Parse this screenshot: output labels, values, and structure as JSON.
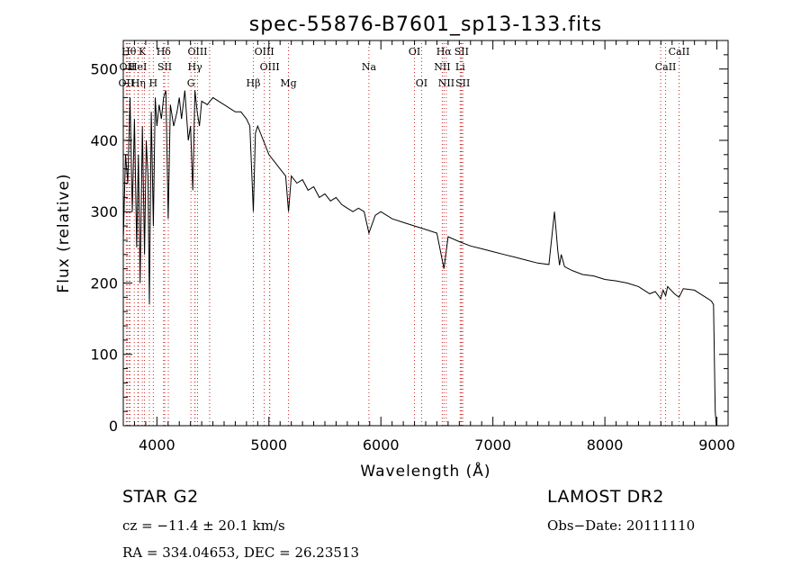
{
  "chart_data": {
    "type": "line",
    "title": "spec-55876-B7601_sp13-133.fits",
    "xlabel": "Wavelength (Å)",
    "ylabel": "Flux (relative)",
    "xlim": [
      3700,
      9100
    ],
    "ylim": [
      0,
      540
    ],
    "xticks": [
      4000,
      5000,
      6000,
      7000,
      8000,
      9000
    ],
    "yticks": [
      0,
      100,
      200,
      300,
      400,
      500
    ],
    "grid": false,
    "line_color": "#000000",
    "marker_color": "#cc2222",
    "spectrum": {
      "x": [
        3700,
        3720,
        3740,
        3760,
        3780,
        3800,
        3820,
        3835,
        3850,
        3870,
        3890,
        3905,
        3920,
        3933,
        3950,
        3968,
        3985,
        4000,
        4020,
        4040,
        4060,
        4080,
        4101,
        4120,
        4150,
        4180,
        4200,
        4220,
        4250,
        4280,
        4300,
        4320,
        4340,
        4360,
        4380,
        4400,
        4450,
        4500,
        4550,
        4600,
        4650,
        4700,
        4750,
        4800,
        4830,
        4861,
        4880,
        4900,
        4950,
        5000,
        5050,
        5100,
        5150,
        5175,
        5200,
        5250,
        5300,
        5350,
        5400,
        5450,
        5500,
        5550,
        5600,
        5650,
        5700,
        5750,
        5800,
        5850,
        5893,
        5950,
        6000,
        6100,
        6200,
        6300,
        6400,
        6500,
        6563,
        6600,
        6700,
        6800,
        6900,
        7000,
        7100,
        7200,
        7300,
        7400,
        7500,
        7550,
        7580,
        7595,
        7610,
        7640,
        7700,
        7800,
        7900,
        8000,
        8100,
        8200,
        8300,
        8400,
        8450,
        8498,
        8520,
        8542,
        8560,
        8620,
        8662,
        8700,
        8800,
        8850,
        8900,
        8950,
        8970,
        8985,
        8995
      ],
      "y": [
        260,
        380,
        340,
        460,
        300,
        430,
        250,
        380,
        200,
        420,
        240,
        400,
        350,
        170,
        440,
        280,
        460,
        420,
        450,
        430,
        460,
        470,
        290,
        450,
        420,
        440,
        460,
        430,
        470,
        400,
        420,
        330,
        470,
        440,
        420,
        455,
        450,
        460,
        455,
        450,
        445,
        440,
        440,
        430,
        420,
        300,
        410,
        420,
        400,
        380,
        370,
        360,
        350,
        300,
        350,
        340,
        345,
        330,
        335,
        320,
        325,
        315,
        320,
        310,
        305,
        300,
        305,
        300,
        270,
        295,
        300,
        290,
        285,
        280,
        275,
        270,
        220,
        265,
        258,
        252,
        248,
        244,
        240,
        236,
        232,
        228,
        226,
        300,
        245,
        225,
        240,
        223,
        218,
        212,
        210,
        205,
        203,
        200,
        195,
        185,
        188,
        178,
        190,
        182,
        195,
        185,
        180,
        192,
        190,
        185,
        180,
        175,
        170,
        20,
        0
      ]
    },
    "line_markers_top_labels": [
      {
        "x": 3750,
        "label": "Hθ"
      },
      {
        "x": 3870,
        "label": "K"
      },
      {
        "x": 4060,
        "label": "Hδ"
      },
      {
        "x": 4363,
        "label": "OIII"
      },
      {
        "x": 4959,
        "label": "OIII"
      },
      {
        "x": 6300,
        "label": "OI"
      },
      {
        "x": 6563,
        "label": "Hα"
      },
      {
        "x": 6720,
        "label": "SII"
      },
      {
        "x": 8662,
        "label": "CaII"
      }
    ],
    "line_markers_mid_labels": [
      {
        "x": 3735,
        "label": "OII"
      },
      {
        "x": 3830,
        "label": "HeI"
      },
      {
        "x": 4070,
        "label": "SII"
      },
      {
        "x": 4340,
        "label": "Hγ"
      },
      {
        "x": 5007,
        "label": "OIII"
      },
      {
        "x": 5893,
        "label": "Na"
      },
      {
        "x": 6548,
        "label": "NII"
      },
      {
        "x": 6708,
        "label": "Li"
      },
      {
        "x": 8542,
        "label": "CaII"
      }
    ],
    "line_markers_low_labels": [
      {
        "x": 3727,
        "label": "OII"
      },
      {
        "x": 3835,
        "label": "Hη"
      },
      {
        "x": 3968,
        "label": "H"
      },
      {
        "x": 4304,
        "label": "G"
      },
      {
        "x": 4861,
        "label": "Hβ"
      },
      {
        "x": 5175,
        "label": "Mg"
      },
      {
        "x": 6363,
        "label": "OI"
      },
      {
        "x": 6584,
        "label": "NII"
      },
      {
        "x": 6731,
        "label": "SII"
      }
    ],
    "line_markers_unlabeled": [
      3760,
      3798,
      3889,
      3933,
      4102,
      4340,
      4471,
      5007,
      6716,
      8498
    ]
  },
  "info": {
    "object": "STAR   G2",
    "survey": "LAMOST DR2",
    "cz": "cz = −11.4 ± 20.1 km/s",
    "obs_date": "Obs−Date: 20111110",
    "coords": "RA = 334.04653, DEC =  26.23513"
  }
}
